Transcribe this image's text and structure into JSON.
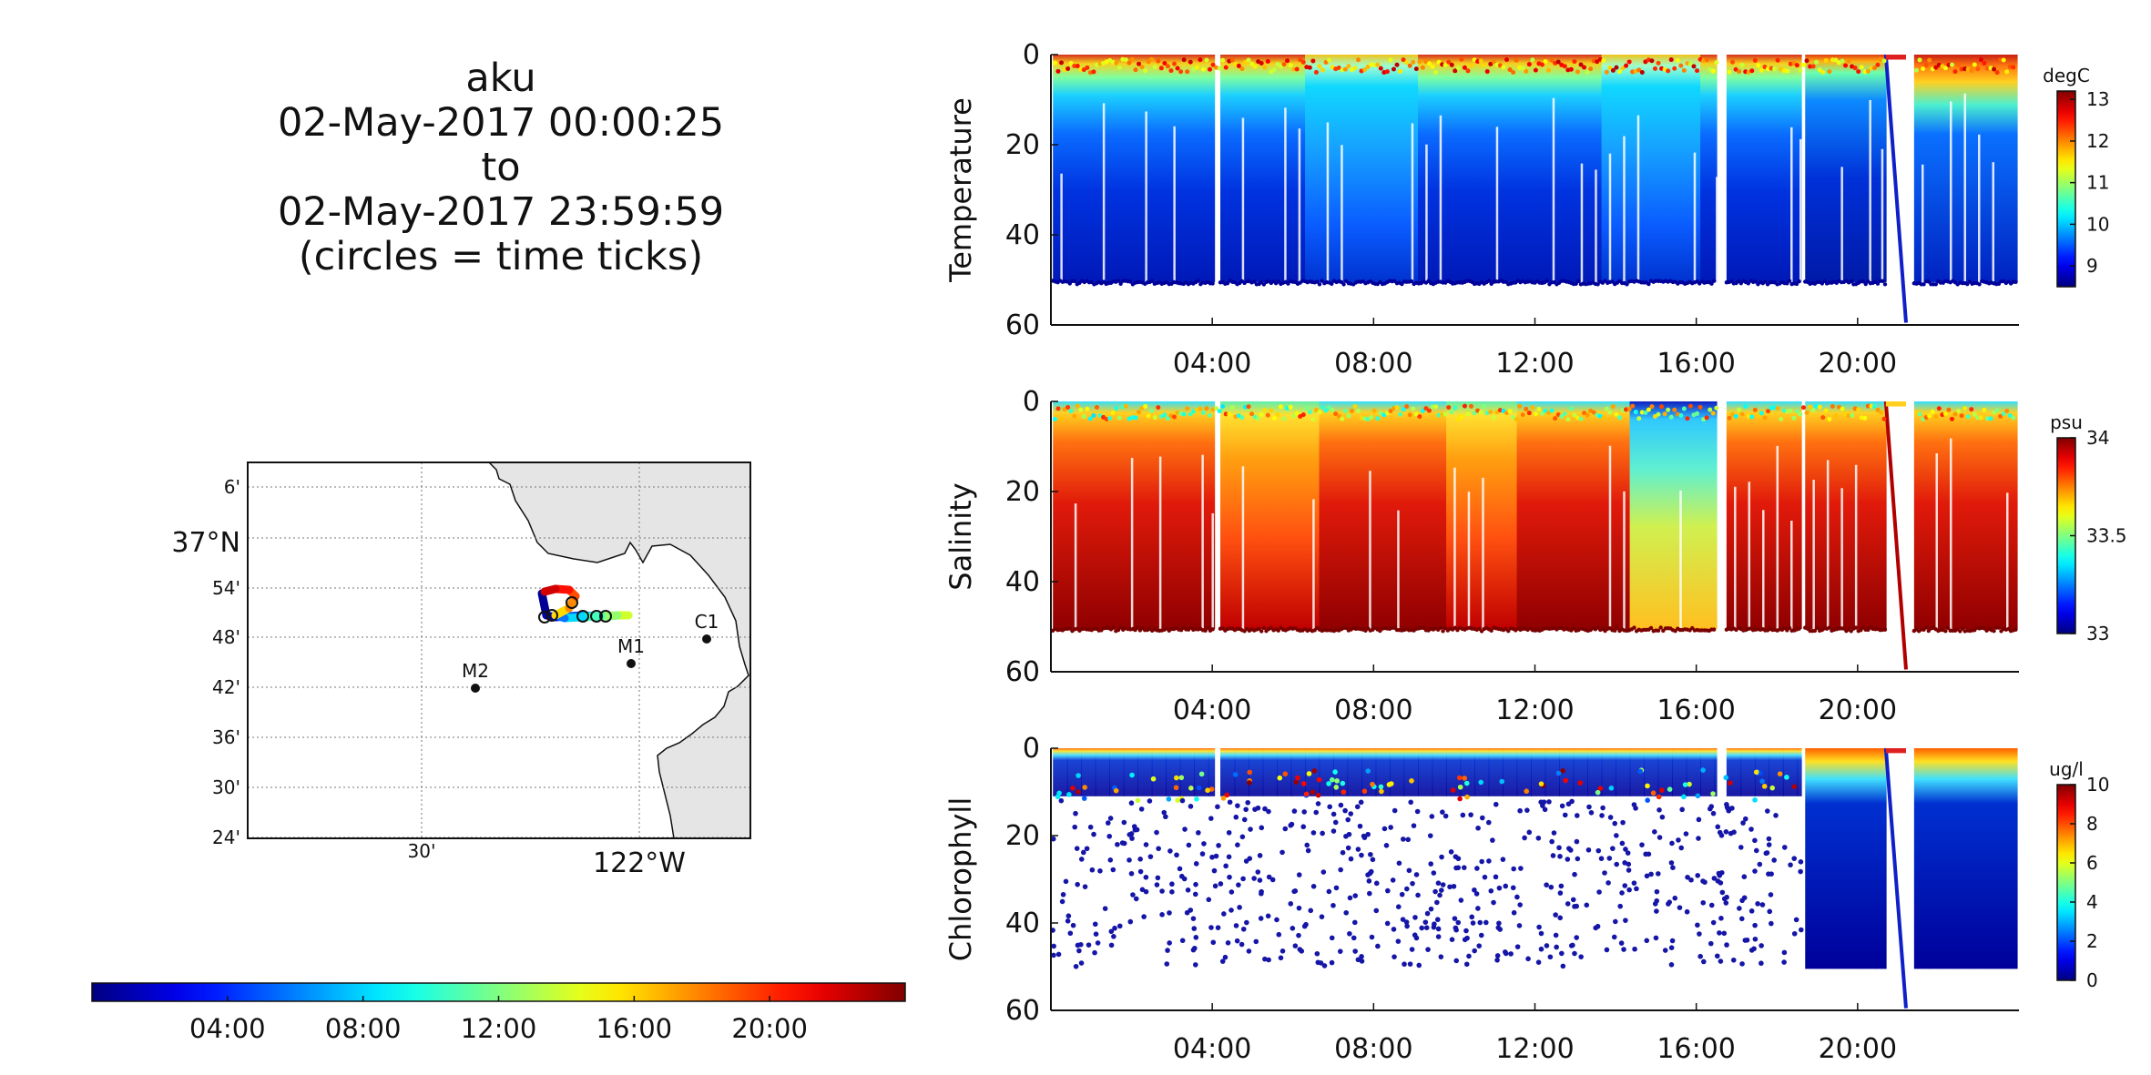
{
  "title": {
    "line1": "aku",
    "line2": "02-May-2017 00:00:25",
    "line3": "to",
    "line4": "02-May-2017 23:59:59",
    "line5": "(circles = time ticks)"
  },
  "chart_data": [
    {
      "type": "map",
      "title": "",
      "lat_ticks": [
        "6'",
        "37°N",
        "54'",
        "48'",
        "42'",
        "36'",
        "30'",
        "24'"
      ],
      "lon_ticks": [
        "30'",
        "122°W"
      ],
      "grid": true,
      "stations": [
        {
          "name": "C1",
          "lon": -121.84,
          "lat": 36.8
        },
        {
          "name": "M1",
          "lon": -122.02,
          "lat": 36.75
        },
        {
          "name": "M2",
          "lon": -122.38,
          "lat": 36.7
        }
      ],
      "track_time_colored": true,
      "time_colorbar": {
        "ticks": [
          "04:00",
          "08:00",
          "12:00",
          "16:00",
          "20:00"
        ]
      }
    },
    {
      "type": "heatmap",
      "ylabel": "Temperature",
      "y_ticks": [
        0,
        20,
        40,
        60
      ],
      "ylim": [
        0,
        60
      ],
      "y_reversed": true,
      "x_ticks": [
        "04:00",
        "08:00",
        "12:00",
        "16:00",
        "20:00"
      ],
      "xlim_hours": [
        0,
        24
      ],
      "colorbar": {
        "unit": "degC",
        "ticks": [
          9,
          10,
          11,
          12,
          13
        ],
        "range": [
          8.5,
          13.2
        ]
      }
    },
    {
      "type": "heatmap",
      "ylabel": "Salinity",
      "y_ticks": [
        0,
        20,
        40,
        60
      ],
      "ylim": [
        0,
        60
      ],
      "y_reversed": true,
      "x_ticks": [
        "04:00",
        "08:00",
        "12:00",
        "16:00",
        "20:00"
      ],
      "xlim_hours": [
        0,
        24
      ],
      "colorbar": {
        "unit": "psu",
        "ticks": [
          33,
          33.5,
          34
        ],
        "range": [
          33,
          34
        ]
      }
    },
    {
      "type": "scatter",
      "ylabel": "Chlorophyll",
      "y_ticks": [
        0,
        20,
        40,
        60
      ],
      "ylim": [
        0,
        60
      ],
      "y_reversed": true,
      "x_ticks": [
        "04:00",
        "08:00",
        "12:00",
        "16:00",
        "20:00"
      ],
      "xlim_hours": [
        0,
        24
      ],
      "colorbar": {
        "unit": "ug/l",
        "ticks": [
          0,
          2,
          4,
          6,
          8,
          10
        ],
        "range": [
          0,
          10
        ]
      }
    }
  ],
  "colors": {
    "jet_dark_blue": "#00008f",
    "jet_dark_red": "#800000",
    "land": "#e5e5e5"
  }
}
